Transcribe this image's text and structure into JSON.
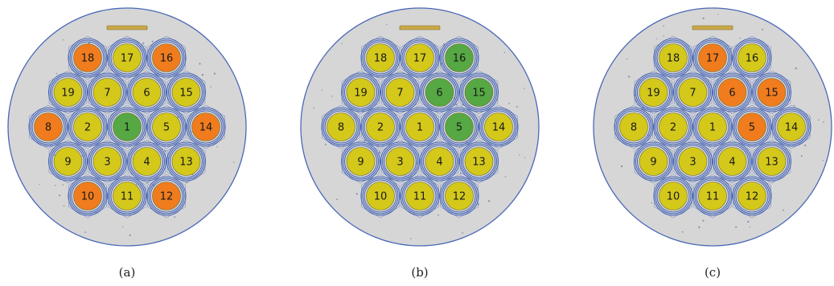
{
  "colors": {
    "yellow": "#d4c81a",
    "orange": "#f07c1e",
    "green": "#55a843",
    "disk": "#d6d6d6",
    "ring": "#4a68b8",
    "bar": "#c9a84a"
  },
  "panels": [
    {
      "caption": "(a)",
      "pins": [
        {
          "id": "18",
          "color": "orange"
        },
        {
          "id": "17",
          "color": "yellow"
        },
        {
          "id": "16",
          "color": "orange"
        },
        {
          "id": "19",
          "color": "yellow"
        },
        {
          "id": "7",
          "color": "yellow"
        },
        {
          "id": "6",
          "color": "yellow"
        },
        {
          "id": "15",
          "color": "yellow"
        },
        {
          "id": "8",
          "color": "orange"
        },
        {
          "id": "2",
          "color": "yellow"
        },
        {
          "id": "1",
          "color": "green"
        },
        {
          "id": "5",
          "color": "yellow"
        },
        {
          "id": "14",
          "color": "orange"
        },
        {
          "id": "9",
          "color": "yellow"
        },
        {
          "id": "3",
          "color": "yellow"
        },
        {
          "id": "4",
          "color": "yellow"
        },
        {
          "id": "13",
          "color": "yellow"
        },
        {
          "id": "10",
          "color": "orange"
        },
        {
          "id": "11",
          "color": "yellow"
        },
        {
          "id": "12",
          "color": "orange"
        }
      ]
    },
    {
      "caption": "(b)",
      "pins": [
        {
          "id": "18",
          "color": "yellow"
        },
        {
          "id": "17",
          "color": "yellow"
        },
        {
          "id": "16",
          "color": "green"
        },
        {
          "id": "19",
          "color": "yellow"
        },
        {
          "id": "7",
          "color": "yellow"
        },
        {
          "id": "6",
          "color": "green"
        },
        {
          "id": "15",
          "color": "green"
        },
        {
          "id": "8",
          "color": "yellow"
        },
        {
          "id": "2",
          "color": "yellow"
        },
        {
          "id": "1",
          "color": "yellow"
        },
        {
          "id": "5",
          "color": "green"
        },
        {
          "id": "14",
          "color": "yellow"
        },
        {
          "id": "9",
          "color": "yellow"
        },
        {
          "id": "3",
          "color": "yellow"
        },
        {
          "id": "4",
          "color": "yellow"
        },
        {
          "id": "13",
          "color": "yellow"
        },
        {
          "id": "10",
          "color": "yellow"
        },
        {
          "id": "11",
          "color": "yellow"
        },
        {
          "id": "12",
          "color": "yellow"
        }
      ]
    },
    {
      "caption": "(c)",
      "pins": [
        {
          "id": "18",
          "color": "yellow"
        },
        {
          "id": "17",
          "color": "orange"
        },
        {
          "id": "16",
          "color": "yellow"
        },
        {
          "id": "19",
          "color": "yellow"
        },
        {
          "id": "7",
          "color": "yellow"
        },
        {
          "id": "6",
          "color": "orange"
        },
        {
          "id": "15",
          "color": "orange"
        },
        {
          "id": "8",
          "color": "yellow"
        },
        {
          "id": "2",
          "color": "yellow"
        },
        {
          "id": "1",
          "color": "yellow"
        },
        {
          "id": "5",
          "color": "orange"
        },
        {
          "id": "14",
          "color": "yellow"
        },
        {
          "id": "9",
          "color": "yellow"
        },
        {
          "id": "3",
          "color": "yellow"
        },
        {
          "id": "4",
          "color": "yellow"
        },
        {
          "id": "13",
          "color": "yellow"
        },
        {
          "id": "10",
          "color": "yellow"
        },
        {
          "id": "11",
          "color": "yellow"
        },
        {
          "id": "12",
          "color": "yellow"
        }
      ]
    }
  ]
}
